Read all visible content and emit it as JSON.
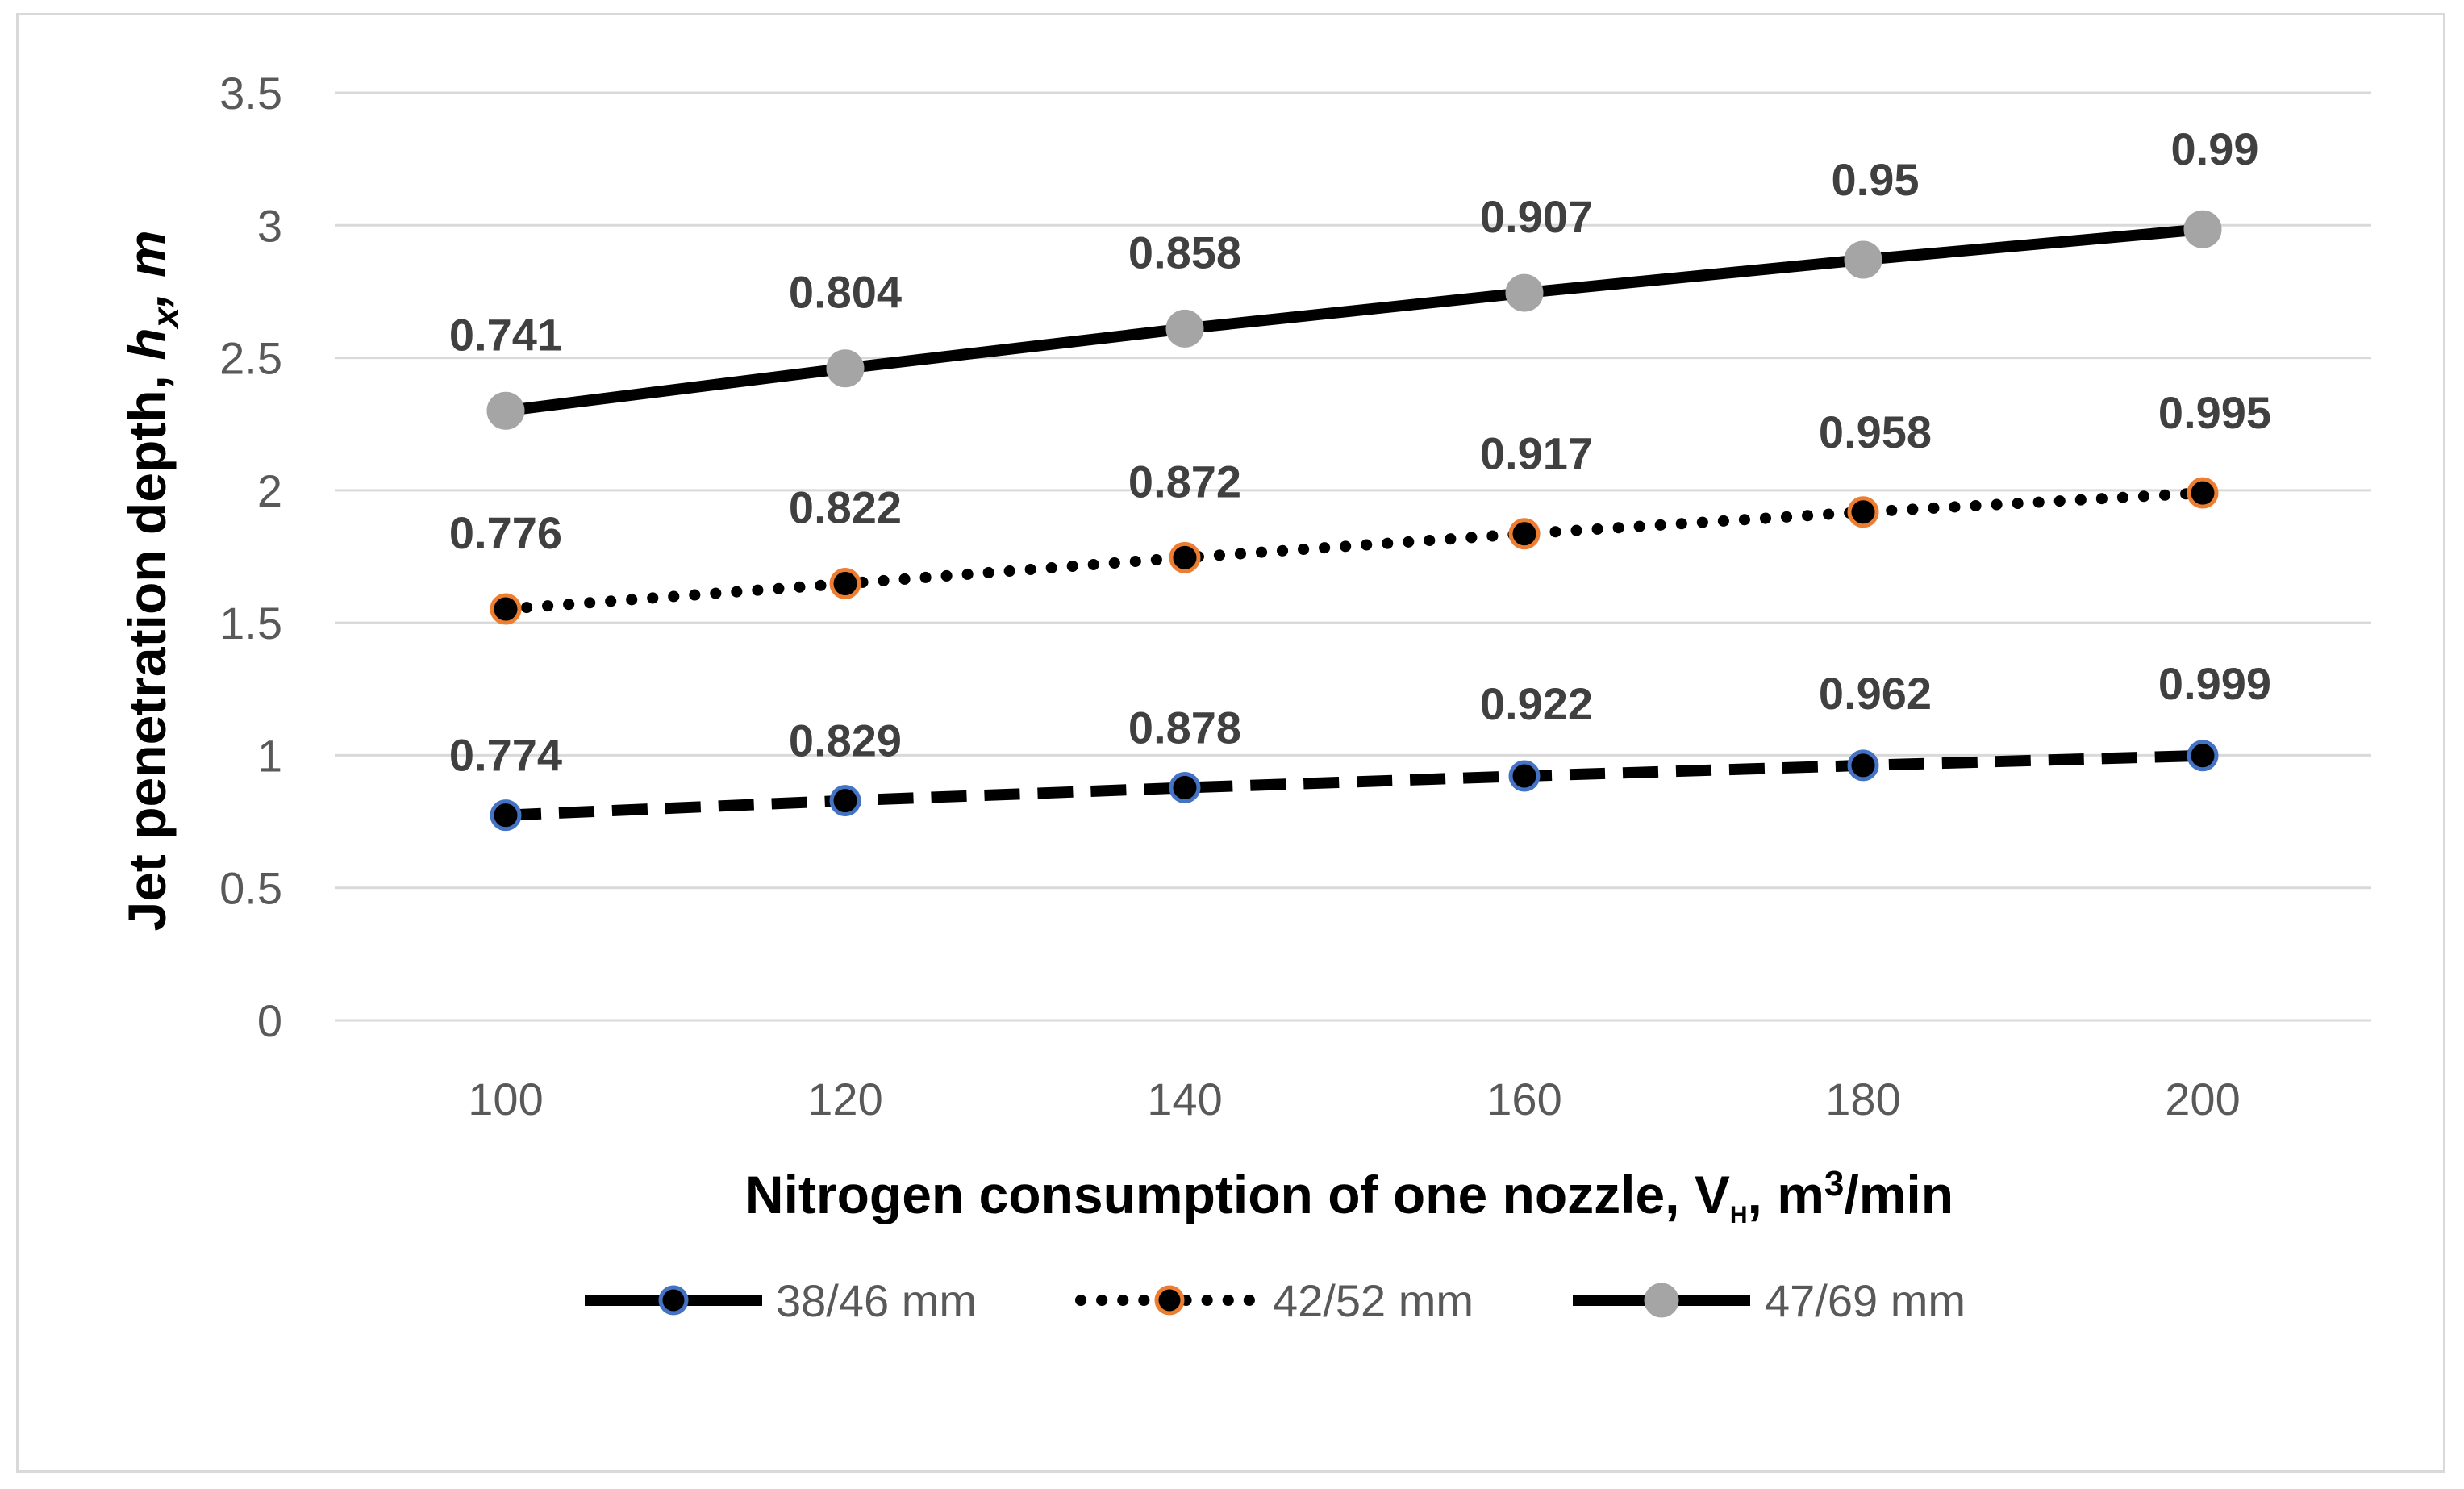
{
  "chart_data": {
    "type": "line",
    "title": "",
    "x": [
      100,
      120,
      140,
      160,
      180,
      200
    ],
    "xlabel": {
      "prefix": "Nitrogen consumption of one nozzle, V",
      "subscript": "H",
      "middle": ", m",
      "superscript": "3",
      "suffix": "/min"
    },
    "ylabel": {
      "prefix": "Jet penetration depth, ",
      "var": "h",
      "subscript": "x",
      "suffix": ", m"
    },
    "ylim": [
      0,
      3.5
    ],
    "yticks": [
      0,
      0.5,
      1,
      1.5,
      2,
      2.5,
      3,
      3.5
    ],
    "ytick_labels": [
      "0",
      "0.5",
      "1",
      "1.5",
      "2",
      "2.5",
      "3",
      "3.5"
    ],
    "xtick_labels": [
      "100",
      "120",
      "140",
      "160",
      "180",
      "200"
    ],
    "grid": true,
    "legend_position": "bottom",
    "series": [
      {
        "name": "38/46 mm",
        "values": [
          0.774,
          0.829,
          0.878,
          0.922,
          0.962,
          0.999
        ],
        "labels": [
          "0.774",
          "0.829",
          "0.878",
          "0.922",
          "0.962",
          "0.999"
        ],
        "line_style": "dashed",
        "line_color": "#000000",
        "marker_fill": "#000000",
        "marker_edge": "#4472c4"
      },
      {
        "name": "42/52 mm",
        "values": [
          1.552,
          1.648,
          1.746,
          1.836,
          1.918,
          1.99
        ],
        "labels": [
          "0.776",
          "0.822",
          "0.872",
          "0.917",
          "0.958",
          "0.995"
        ],
        "line_style": "dotted",
        "line_color": "#000000",
        "marker_fill": "#000000",
        "marker_edge": "#ed7d31"
      },
      {
        "name": "47/69 mm",
        "values": [
          2.3,
          2.46,
          2.61,
          2.745,
          2.87,
          2.985
        ],
        "labels": [
          "0.741",
          "0.804",
          "0.858",
          "0.907",
          "0.95",
          "0.99"
        ],
        "line_style": "solid",
        "line_color": "#000000",
        "marker_fill": "#a5a5a5",
        "marker_edge": "#a5a5a5"
      }
    ]
  }
}
